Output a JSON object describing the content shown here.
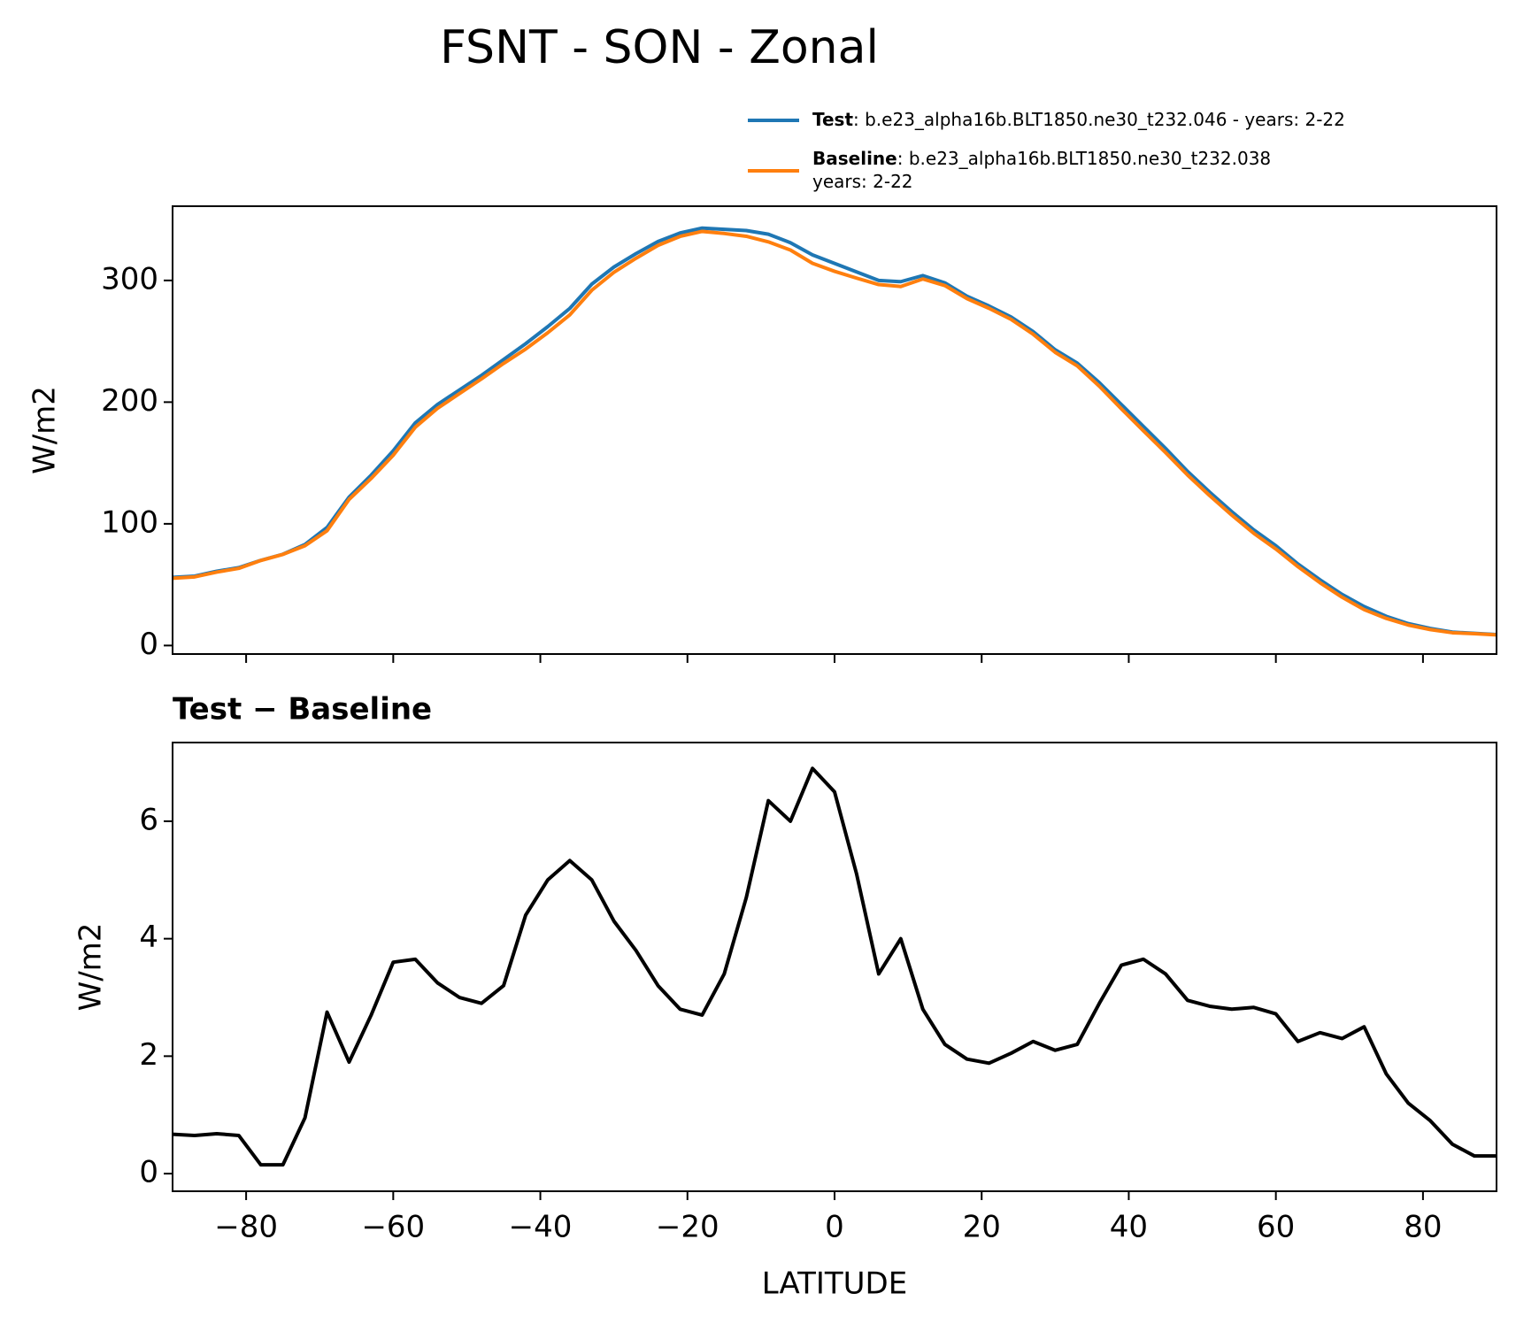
{
  "chart_data": [
    {
      "type": "line",
      "title": "FSNT - SON - Zonal",
      "ylabel": "W/m2",
      "x": [
        -90,
        -87,
        -84,
        -81,
        -78,
        -75,
        -72,
        -69,
        -66,
        -63,
        -60,
        -57,
        -54,
        -51,
        -48,
        -45,
        -42,
        -39,
        -36,
        -33,
        -30,
        -27,
        -24,
        -21,
        -18,
        -15,
        -12,
        -9,
        -6,
        -3,
        0,
        3,
        6,
        9,
        12,
        15,
        18,
        21,
        24,
        27,
        30,
        33,
        36,
        39,
        42,
        45,
        48,
        51,
        54,
        57,
        60,
        63,
        66,
        69,
        72,
        75,
        78,
        81,
        84,
        87,
        90
      ],
      "series": [
        {
          "name": "Test",
          "label_lines": [
            ": b.e23_alpha16b.BLT1850.ne30_t232.046 - years: 2-22"
          ],
          "color": "#1f77b4",
          "values": [
            56,
            57,
            61,
            64,
            70,
            75,
            83,
            97,
            122,
            140,
            160,
            183,
            198,
            210,
            222,
            235,
            248,
            262,
            277,
            297,
            311,
            322,
            332,
            339,
            343,
            342,
            341,
            338,
            331,
            321,
            314,
            307,
            300,
            299,
            304,
            298,
            287,
            279,
            270,
            258,
            243,
            232,
            216,
            198,
            180,
            162,
            143,
            126,
            110,
            95,
            82,
            67,
            54,
            42,
            32,
            24,
            18,
            14,
            11,
            10,
            9
          ]
        },
        {
          "name": "Baseline",
          "label_lines": [
            ": b.e23_alpha16b.BLT1850.ne30_t232.038",
            "years: 2-22"
          ],
          "color": "#ff7f0e",
          "values": [
            55.3,
            56.4,
            60.3,
            63.4,
            69.9,
            74.9,
            82.0,
            94.3,
            120.1,
            137.3,
            156.4,
            179.4,
            194.8,
            207,
            219.1,
            231.8,
            243.6,
            257,
            271.7,
            292,
            306.7,
            318.2,
            328.8,
            336.2,
            340.3,
            338.6,
            336.3,
            331.7,
            325,
            314.1,
            307.5,
            301.9,
            296.6,
            295,
            301.2,
            295.8,
            285.1,
            277.1,
            268,
            255.8,
            240.9,
            229.8,
            213.1,
            194.5,
            176.4,
            158.6,
            140.1,
            123.2,
            107.2,
            92.2,
            79.3,
            64.8,
            51.6,
            39.7,
            29.5,
            22.3,
            16.8,
            13.1,
            10.5,
            9.7,
            8.7
          ]
        }
      ],
      "xlim": [
        -90,
        90
      ],
      "xticks": [
        -80,
        -60,
        -40,
        -20,
        0,
        20,
        40,
        60,
        80
      ],
      "show_xtick_labels": false,
      "ylim": [
        -7,
        361
      ],
      "yticks": [
        0,
        100,
        200,
        300
      ],
      "legend": "top right"
    },
    {
      "type": "line",
      "title": "Test − Baseline",
      "xlabel": "LATITUDE",
      "ylabel": "W/m2",
      "x": [
        -90,
        -87,
        -84,
        -81,
        -78,
        -75,
        -72,
        -69,
        -66,
        -63,
        -60,
        -57,
        -54,
        -51,
        -48,
        -45,
        -42,
        -39,
        -36,
        -33,
        -30,
        -27,
        -24,
        -21,
        -18,
        -15,
        -12,
        -9,
        -6,
        -3,
        0,
        3,
        6,
        9,
        12,
        15,
        18,
        21,
        24,
        27,
        30,
        33,
        36,
        39,
        42,
        45,
        48,
        51,
        54,
        57,
        60,
        63,
        66,
        69,
        72,
        75,
        78,
        81,
        84,
        87,
        90
      ],
      "series": [
        {
          "color": "#000000",
          "values": [
            0.67,
            0.65,
            0.68,
            0.65,
            0.15,
            0.15,
            0.95,
            2.75,
            1.9,
            2.7,
            3.6,
            3.65,
            3.25,
            3.0,
            2.9,
            3.2,
            4.4,
            5.0,
            5.33,
            5.0,
            4.3,
            3.8,
            3.2,
            2.8,
            2.7,
            3.4,
            4.7,
            6.35,
            6.0,
            6.9,
            6.5,
            5.1,
            3.4,
            4.0,
            2.8,
            2.2,
            1.95,
            1.88,
            2.05,
            2.25,
            2.1,
            2.2,
            2.9,
            3.55,
            3.65,
            3.4,
            2.95,
            2.85,
            2.8,
            2.83,
            2.72,
            2.25,
            2.4,
            2.3,
            2.5,
            1.7,
            1.2,
            0.9,
            0.5,
            0.3,
            0.3
          ]
        }
      ],
      "xlim": [
        -90,
        90
      ],
      "xticks": [
        {
          "value": -80,
          "label": "−80"
        },
        {
          "value": -60,
          "label": "−60"
        },
        {
          "value": -40,
          "label": "−40"
        },
        {
          "value": -20,
          "label": "−20"
        },
        0,
        20,
        40,
        60,
        80
      ],
      "ylim": [
        -0.3,
        7.34
      ],
      "yticks": [
        0,
        2,
        4,
        6
      ]
    }
  ]
}
